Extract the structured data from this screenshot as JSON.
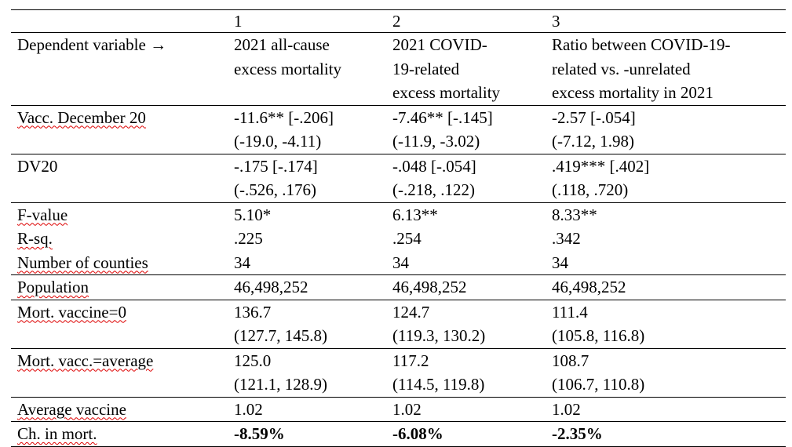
{
  "table": {
    "columns": [
      "1",
      "2",
      "3"
    ],
    "rows": [
      {
        "label": "Dependent variable →",
        "cells": [
          [
            "2021 all-cause",
            "excess mortality"
          ],
          [
            "2021 COVID-",
            "19-related",
            "excess mortality"
          ],
          [
            "Ratio between COVID-19-",
            "related vs. -unrelated",
            "excess mortality in 2021"
          ]
        ]
      },
      {
        "label": "Vacc. December 20",
        "cells": [
          [
            "-11.6** [-.206]",
            "(-19.0, -4.11)"
          ],
          [
            "-7.46** [-.145]",
            "(-11.9, -3.02)"
          ],
          [
            "-2.57 [-.054]",
            "(-7.12, 1.98)"
          ]
        ]
      },
      {
        "label": "DV20",
        "cells": [
          [
            "-.175 [-.174]",
            "(-.526, .176)"
          ],
          [
            "-.048 [-.054]",
            "(-.218, .122)"
          ],
          [
            ".419*** [.402]",
            "(.118, .720)"
          ]
        ]
      },
      {
        "label": "F-value",
        "cells": [
          [
            "5.10*"
          ],
          [
            "6.13**"
          ],
          [
            "8.33**"
          ]
        ]
      },
      {
        "label": "R-sq.",
        "cells": [
          [
            ".225"
          ],
          [
            ".254"
          ],
          [
            ".342"
          ]
        ]
      },
      {
        "label": "Number of counties",
        "cells": [
          [
            "34"
          ],
          [
            "34"
          ],
          [
            "34"
          ]
        ]
      },
      {
        "label": "Population",
        "cells": [
          [
            "46,498,252"
          ],
          [
            "46,498,252"
          ],
          [
            "46,498,252"
          ]
        ]
      },
      {
        "label": "Mort. vaccine=0",
        "cells": [
          [
            "136.7",
            "(127.7, 145.8)"
          ],
          [
            "124.7",
            "(119.3, 130.2)"
          ],
          [
            "111.4",
            "(105.8, 116.8)"
          ]
        ]
      },
      {
        "label": "Mort. vacc.=average",
        "cells": [
          [
            "125.0",
            "(121.1, 128.9)"
          ],
          [
            "117.2",
            "(114.5, 119.8)"
          ],
          [
            "108.7",
            "(106.7, 110.8)"
          ]
        ]
      },
      {
        "label": "Average vaccine",
        "cells": [
          [
            "1.02"
          ],
          [
            "1.02"
          ],
          [
            "1.02"
          ]
        ]
      },
      {
        "label": "Ch. in mort.",
        "cells": [
          [
            "-8.59%"
          ],
          [
            "-6.08%"
          ],
          [
            "-2.35%"
          ]
        ]
      }
    ]
  }
}
